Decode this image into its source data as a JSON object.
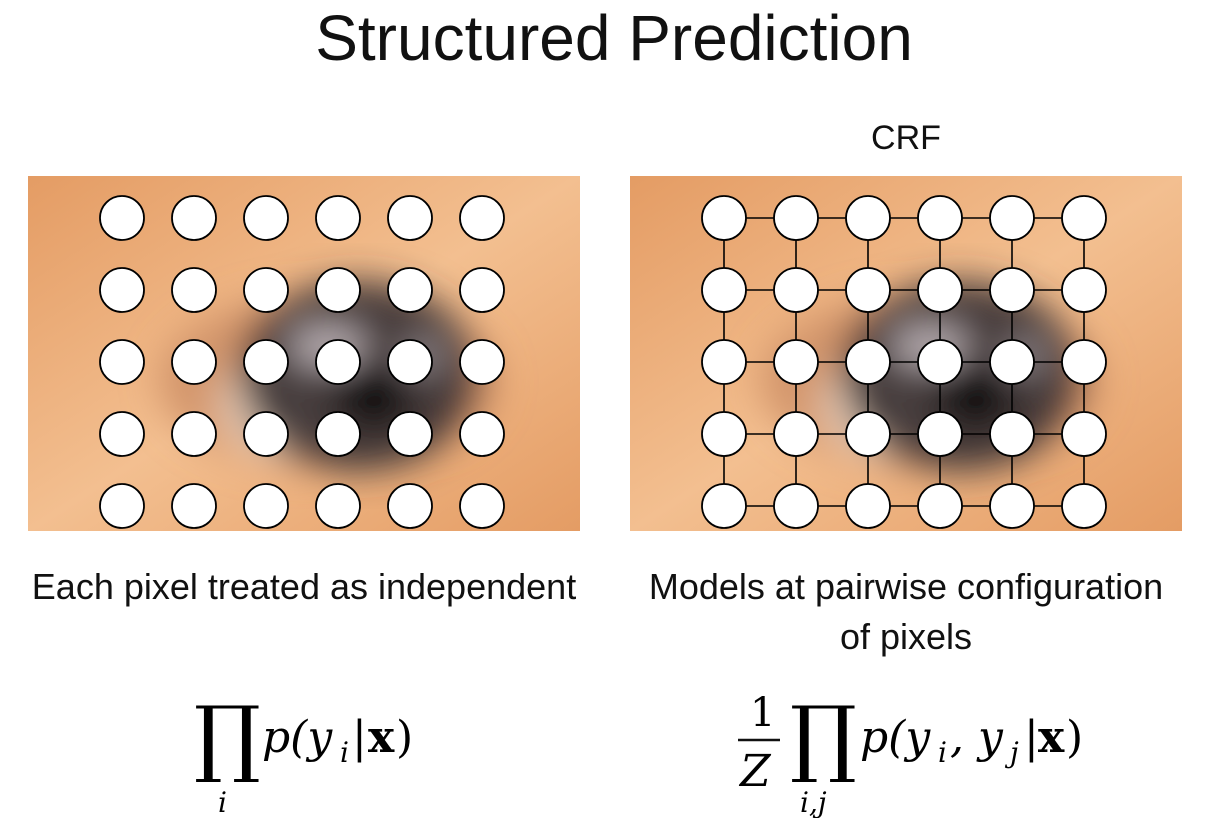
{
  "title": "Structured Prediction",
  "crf_label": "CRF",
  "grid": {
    "rows": 5,
    "cols": 6
  },
  "colors": {
    "skin_light": "#f3bf90",
    "skin_mid": "#e49c64",
    "iris_dark": "#3d3437",
    "pupil": "#0d0a0c",
    "node_fill": "#ffffff",
    "node_stroke": "#000000"
  },
  "left_panel": {
    "caption": "Each pixel treated as independent",
    "formula": {
      "operator": "∏",
      "subscript": "i",
      "text": "p(y",
      "sub1": "i",
      "bar": "|",
      "bold_x": "x",
      "close": ")"
    }
  },
  "right_panel": {
    "caption_line1": "Models at pairwise configuration",
    "caption_line2": "of pixels",
    "formula": {
      "numerator": "1",
      "denominator": "Z",
      "operator": "∏",
      "subscript": "i,j",
      "text": "p(y",
      "sub1": "i",
      "comma": ", y",
      "sub2": "j",
      "bar": "|",
      "bold_x": "x",
      "close": ")"
    }
  }
}
